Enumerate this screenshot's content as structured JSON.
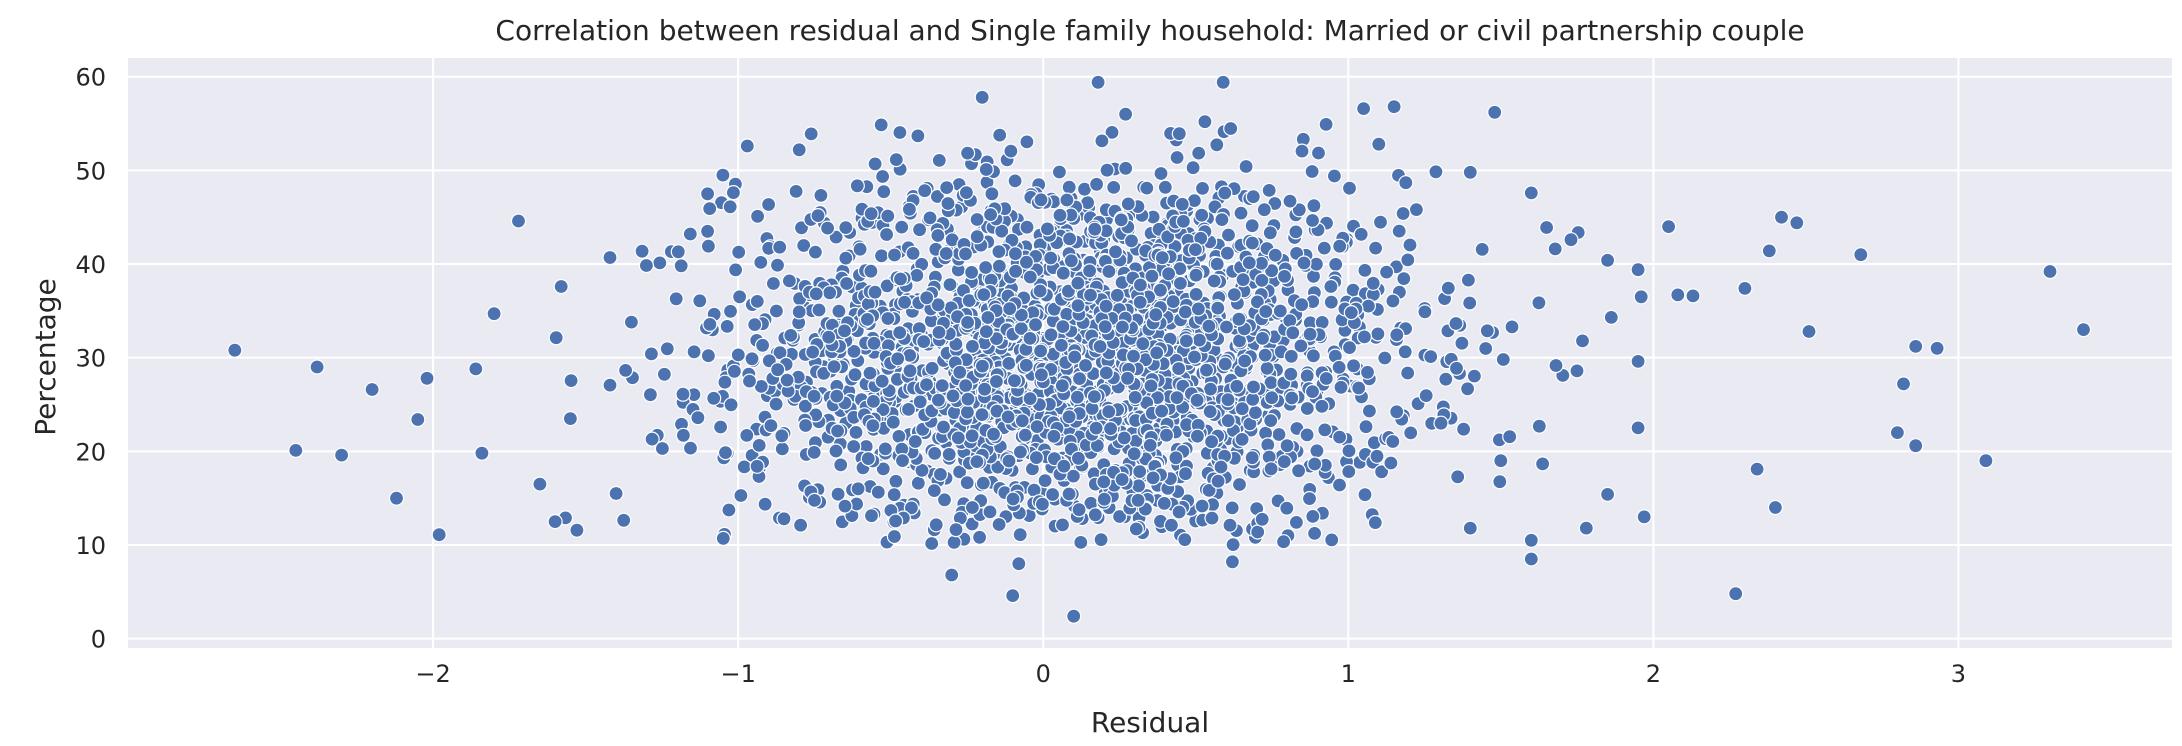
{
  "chart_data": {
    "type": "scatter",
    "title": "Correlation between residual and Single family household: Married or civil partnership couple",
    "xlabel": "Residual",
    "ylabel": "Percentage",
    "xlim": [
      -3.0,
      3.7
    ],
    "ylim": [
      -1.0,
      62.0
    ],
    "xticks": [
      -2,
      -1,
      0,
      1,
      2,
      3
    ],
    "xtick_labels": [
      "−2",
      "−1",
      "0",
      "1",
      "2",
      "3"
    ],
    "yticks": [
      0,
      10,
      20,
      30,
      40,
      50,
      60
    ],
    "ytick_labels": [
      "0",
      "10",
      "20",
      "30",
      "40",
      "50",
      "60"
    ],
    "grid": true,
    "colors": {
      "point": "#4c72b0",
      "background": "#eaeaf2",
      "grid": "#ffffff"
    },
    "outliers": [
      [
        -2.65,
        30.8
      ],
      [
        -2.45,
        20.1
      ],
      [
        -2.38,
        29.0
      ],
      [
        -2.3,
        19.6
      ],
      [
        -2.2,
        26.6
      ],
      [
        -2.12,
        15.0
      ],
      [
        -2.05,
        23.4
      ],
      [
        -2.02,
        27.8
      ],
      [
        -1.98,
        11.1
      ],
      [
        -1.86,
        28.8
      ],
      [
        -1.84,
        19.8
      ],
      [
        -1.72,
        44.6
      ],
      [
        -1.8,
        34.7
      ],
      [
        -1.58,
        37.6
      ],
      [
        -1.42,
        40.7
      ],
      [
        -1.6,
        12.5
      ],
      [
        -1.65,
        16.5
      ],
      [
        -1.55,
        23.5
      ],
      [
        -1.4,
        15.5
      ],
      [
        -1.35,
        33.8
      ],
      [
        1.05,
        56.6
      ],
      [
        1.15,
        56.8
      ],
      [
        1.48,
        56.2
      ],
      [
        1.1,
        52.8
      ],
      [
        1.4,
        49.8
      ],
      [
        1.6,
        47.6
      ],
      [
        1.65,
        43.9
      ],
      [
        1.73,
        42.6
      ],
      [
        1.85,
        40.4
      ],
      [
        1.95,
        39.4
      ],
      [
        1.96,
        36.5
      ],
      [
        2.05,
        44.0
      ],
      [
        2.08,
        36.7
      ],
      [
        2.13,
        36.6
      ],
      [
        2.3,
        37.4
      ],
      [
        2.38,
        41.4
      ],
      [
        2.42,
        45.0
      ],
      [
        2.47,
        44.4
      ],
      [
        2.51,
        32.8
      ],
      [
        2.68,
        41.0
      ],
      [
        2.82,
        27.2
      ],
      [
        2.86,
        31.2
      ],
      [
        2.93,
        31.0
      ],
      [
        2.8,
        22.0
      ],
      [
        2.86,
        20.6
      ],
      [
        3.09,
        19.0
      ],
      [
        3.3,
        39.2
      ],
      [
        3.41,
        33.0
      ],
      [
        2.34,
        18.1
      ],
      [
        2.4,
        14.0
      ],
      [
        2.27,
        4.8
      ],
      [
        1.97,
        13.0
      ],
      [
        1.95,
        22.5
      ],
      [
        1.95,
        29.6
      ],
      [
        1.6,
        10.5
      ],
      [
        1.6,
        8.5
      ],
      [
        1.78,
        11.8
      ],
      [
        1.85,
        15.4
      ],
      [
        1.4,
        11.8
      ],
      [
        1.5,
        19.0
      ],
      [
        -0.3,
        6.8
      ],
      [
        -0.1,
        4.6
      ],
      [
        -0.08,
        8.0
      ],
      [
        0.1,
        2.4
      ],
      [
        0.62,
        8.2
      ],
      [
        0.18,
        59.4
      ],
      [
        0.59,
        59.4
      ],
      [
        -0.2,
        57.8
      ],
      [
        0.27,
        56.0
      ],
      [
        0.53,
        55.2
      ],
      [
        -0.97,
        52.6
      ],
      [
        -0.8,
        52.2
      ],
      [
        -1.05,
        49.5
      ],
      [
        -1.1,
        47.5
      ],
      [
        -1.1,
        43.5
      ]
    ],
    "cloud": {
      "count": 2600,
      "x_center": 0.1,
      "x_spread": 0.55,
      "y_center": 30.0,
      "y_spread": 10.0,
      "x_range": [
        -1.6,
        1.9
      ],
      "y_range": [
        10,
        55
      ]
    }
  }
}
